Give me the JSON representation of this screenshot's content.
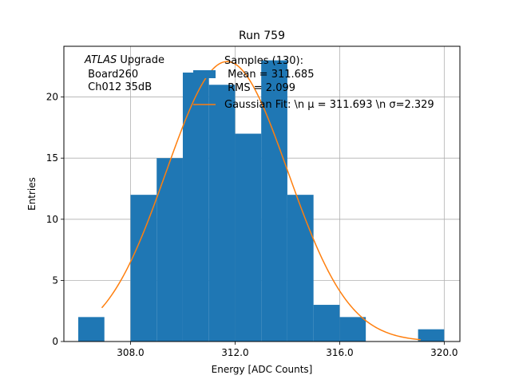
{
  "chart_data": {
    "type": "bar",
    "title": "Run 759",
    "xlabel": "Energy [ADC Counts]",
    "ylabel": "Entries",
    "xlim": [
      305.45,
      320.6
    ],
    "ylim": [
      0,
      24.15
    ],
    "xticks": [
      308.0,
      312.0,
      316.0,
      320.0
    ],
    "xtick_labels": [
      "308.0",
      "312.0",
      "316.0",
      "320.0"
    ],
    "yticks": [
      0,
      5,
      10,
      15,
      20
    ],
    "ytick_labels": [
      "0",
      "5",
      "10",
      "15",
      "20"
    ],
    "grid": true,
    "bins": [
      {
        "x0": 306,
        "x1": 307,
        "count": 2
      },
      {
        "x0": 307,
        "x1": 308,
        "count": 0
      },
      {
        "x0": 308,
        "x1": 309,
        "count": 12
      },
      {
        "x0": 309,
        "x1": 310,
        "count": 15
      },
      {
        "x0": 310,
        "x1": 311,
        "count": 22
      },
      {
        "x0": 311,
        "x1": 312,
        "count": 21
      },
      {
        "x0": 312,
        "x1": 313,
        "count": 17
      },
      {
        "x0": 313,
        "x1": 314,
        "count": 23
      },
      {
        "x0": 314,
        "x1": 315,
        "count": 12
      },
      {
        "x0": 315,
        "x1": 316,
        "count": 3
      },
      {
        "x0": 316,
        "x1": 317,
        "count": 2
      },
      {
        "x0": 317,
        "x1": 318,
        "count": 0
      },
      {
        "x0": 318,
        "x1": 319,
        "count": 0
      },
      {
        "x0": 319,
        "x1": 320,
        "count": 1
      }
    ],
    "fit": {
      "mu": 311.693,
      "sigma": 2.329,
      "amplitude": 22.9,
      "x_range": [
        306.9,
        319.1
      ]
    },
    "colors": {
      "hist": "#1f77b4",
      "fit": "#ff7f0e",
      "grid": "#b0b0b0"
    },
    "annotation": {
      "italic": "ATLAS",
      "rest": " Upgrade",
      "lines": [
        " Board260",
        " Ch012 35dB"
      ]
    },
    "legend": {
      "placement": "top-right",
      "entries": [
        {
          "kind": "patch",
          "lines": [
            "Samples (130):",
            " Mean = 311.685",
            " RMS = 2.099"
          ]
        },
        {
          "kind": "line",
          "lines": [
            "Gaussian Fit: \\n μ = 311.693 \\n σ=2.329"
          ]
        }
      ]
    }
  }
}
